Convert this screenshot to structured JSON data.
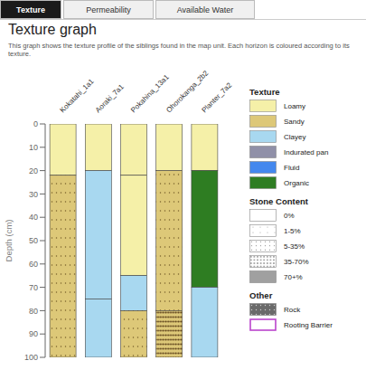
{
  "chart_data": {
    "type": "bar",
    "stacked": true,
    "title": "Texture graph",
    "subtitle": "This graph shows the texture profile of the siblings found in the map unit. Each horizon is coloured according to its texture.",
    "tabs": [
      "Texture",
      "Permeability",
      "Available Water"
    ],
    "active_tab": "Texture",
    "ylabel": "Depth (cm)",
    "categories": [
      "Kokatahi_1a1",
      "Aoraki_7a1",
      "Pokahina_13a1",
      "Ohorokanga_2b2",
      "Planter_7a2"
    ],
    "ylim": [
      0,
      100
    ],
    "yticks": [
      0,
      10,
      20,
      30,
      40,
      50,
      60,
      70,
      80,
      90,
      100
    ],
    "grid": false,
    "legend": "right",
    "series": [
      {
        "values": [
          22,
          20,
          22,
          20,
          20
        ],
        "colors": [
          "#f5f0a8",
          "#f5f0a8",
          "#f5f0a8",
          "#f5f0a8",
          "#f5f0a8"
        ],
        "stones": [
          "0%",
          "0%",
          "0%",
          "0%",
          "0%"
        ]
      },
      {
        "values": [
          78,
          55,
          43,
          60,
          50
        ],
        "colors": [
          "#ddc878",
          "#a8d8f0",
          "#f5f0a8",
          "#ddc878",
          "#2e7d22"
        ],
        "stones": [
          "1-5%",
          "0%",
          "0%",
          "1-5%",
          "0%"
        ]
      },
      {
        "values": [
          null,
          25,
          15,
          20,
          30
        ],
        "colors": [
          null,
          "#a8d8f0",
          "#a8d8f0",
          "#ddc878",
          "#a8d8f0"
        ],
        "stones": [
          null,
          "0%",
          "0%",
          "35-70%",
          "0%"
        ]
      },
      {
        "values": [
          null,
          null,
          20,
          null,
          null
        ],
        "colors": [
          null,
          null,
          "#ddc878",
          null,
          null
        ],
        "stones": [
          null,
          null,
          "1-5%",
          null,
          null
        ]
      }
    ],
    "legend_sections": [
      {
        "title": "Texture",
        "items": [
          {
            "label": "Loamy",
            "color": "#f5f0a8"
          },
          {
            "label": "Sandy",
            "color": "#ddc878"
          },
          {
            "label": "Clayey",
            "color": "#a8d8f0"
          },
          {
            "label": "Indurated pan",
            "color": "#9090a8"
          },
          {
            "label": "Fluid",
            "color": "#4488ee"
          },
          {
            "label": "Organic",
            "color": "#2e7d22"
          }
        ]
      },
      {
        "title": "Stone Content",
        "items": [
          {
            "label": "0%",
            "color": "white"
          },
          {
            "label": "1-5%",
            "color": "white"
          },
          {
            "label": "5-35%",
            "color": "white"
          },
          {
            "label": "35-70%",
            "color": "white"
          },
          {
            "label": "70+%",
            "color": "#a0a0a0"
          }
        ]
      },
      {
        "title": "Other",
        "items": [
          {
            "label": "Rock",
            "color": "#6a6a6a"
          },
          {
            "label": "Rooting Barrier",
            "color": "white"
          }
        ]
      }
    ]
  }
}
